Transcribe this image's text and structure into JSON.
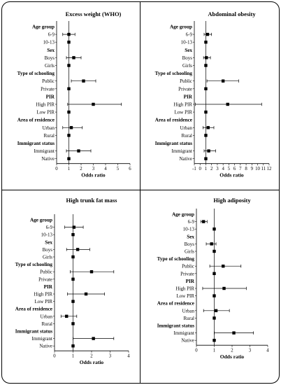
{
  "chart_data": [
    {
      "type": "forest",
      "title": "Excess weight (WHO)",
      "xlabel": "Odds ratio",
      "xlim": [
        0,
        6
      ],
      "xticks": [
        0,
        1,
        2,
        3,
        4,
        5,
        6
      ],
      "reference_line": 1,
      "rows": [
        {
          "label": "Age group",
          "header": true
        },
        {
          "label": "6-9",
          "or": 1.0,
          "lo": 0.5,
          "hi": 1.5
        },
        {
          "label": "10-13",
          "or": 1.0,
          "lo": 1.0,
          "hi": 1.0
        },
        {
          "label": "Sex",
          "header": true
        },
        {
          "label": "Boys",
          "or": 1.4,
          "lo": 0.8,
          "hi": 2.0
        },
        {
          "label": "Girls",
          "or": 1.0,
          "lo": 1.0,
          "hi": 1.0
        },
        {
          "label": "Type of schooling",
          "header": true
        },
        {
          "label": "Public",
          "or": 2.2,
          "lo": 1.2,
          "hi": 3.2
        },
        {
          "label": "Private",
          "or": 1.0,
          "lo": 1.0,
          "hi": 1.0
        },
        {
          "label": "PIR",
          "header": true
        },
        {
          "label": "High PIR",
          "or": 3.0,
          "lo": 0.9,
          "hi": 5.3
        },
        {
          "label": "Low PIR",
          "or": 1.0,
          "lo": 1.0,
          "hi": 1.0
        },
        {
          "label": "Area of residence",
          "header": true
        },
        {
          "label": "Urban",
          "or": 1.2,
          "lo": 0.5,
          "hi": 2.1
        },
        {
          "label": "Rural",
          "or": 1.0,
          "lo": 1.0,
          "hi": 1.0
        },
        {
          "label": "Immigrant status",
          "header": true
        },
        {
          "label": "Immigrant",
          "or": 1.8,
          "lo": 0.8,
          "hi": 2.8
        },
        {
          "label": "Native",
          "or": 1.0,
          "lo": 1.0,
          "hi": 1.0
        }
      ]
    },
    {
      "type": "forest",
      "title": "Abdominal obesity",
      "xlabel": "Odds ratio",
      "xlim": [
        -1,
        12
      ],
      "xticks": [
        -1,
        0,
        1,
        2,
        3,
        4,
        5,
        6,
        7,
        8,
        9,
        10,
        11,
        12
      ],
      "reference_line": 1,
      "rows": [
        {
          "label": "Age group",
          "header": true
        },
        {
          "label": "6-9",
          "or": 1.3,
          "lo": 0.7,
          "hi": 2.0
        },
        {
          "label": "10-13",
          "or": 1.0,
          "lo": 1.0,
          "hi": 1.0
        },
        {
          "label": "Sex",
          "header": true
        },
        {
          "label": "Boys",
          "or": 1.1,
          "lo": 0.6,
          "hi": 1.8
        },
        {
          "label": "Girls",
          "or": 1.0,
          "lo": 1.0,
          "hi": 1.0
        },
        {
          "label": "Type of schooling",
          "header": true
        },
        {
          "label": "Public",
          "or": 4.0,
          "lo": 1.2,
          "hi": 6.7
        },
        {
          "label": "Private",
          "or": 1.0,
          "lo": 1.0,
          "hi": 1.0
        },
        {
          "label": "PIR",
          "header": true
        },
        {
          "label": "High PIR",
          "or": 4.8,
          "lo": -0.8,
          "hi": 10.7
        },
        {
          "label": "Low PIR",
          "or": 1.0,
          "lo": 1.0,
          "hi": 1.0
        },
        {
          "label": "Area of residence",
          "header": true
        },
        {
          "label": "Urban",
          "or": 1.4,
          "lo": 0.5,
          "hi": 2.4
        },
        {
          "label": "Rural",
          "or": 1.0,
          "lo": 1.0,
          "hi": 1.0
        },
        {
          "label": "Immigrant status",
          "header": true
        },
        {
          "label": "Immigrant",
          "or": 1.5,
          "lo": 0.7,
          "hi": 2.7
        },
        {
          "label": "Native",
          "or": 1.0,
          "lo": 1.0,
          "hi": 1.0
        }
      ]
    },
    {
      "type": "forest",
      "title": "High trunk fat mass",
      "xlabel": "Odds ratio",
      "xlim": [
        0,
        4
      ],
      "xticks": [
        0,
        1,
        2,
        3,
        4
      ],
      "reference_line": 1,
      "rows": [
        {
          "label": "Age group",
          "header": true
        },
        {
          "label": "6-9",
          "or": 1.05,
          "lo": 0.55,
          "hi": 1.55
        },
        {
          "label": "10-13",
          "or": 1.0,
          "lo": 1.0,
          "hi": 1.0
        },
        {
          "label": "Sex",
          "header": true
        },
        {
          "label": "Boys",
          "or": 1.25,
          "lo": 0.65,
          "hi": 1.9
        },
        {
          "label": "Girls",
          "or": 1.0,
          "lo": 1.0,
          "hi": 1.0
        },
        {
          "label": "Type of schooling",
          "header": true
        },
        {
          "label": "Public",
          "or": 2.0,
          "lo": 0.85,
          "hi": 3.2
        },
        {
          "label": "Private",
          "or": 1.0,
          "lo": 1.0,
          "hi": 1.0
        },
        {
          "label": "PIR",
          "header": true
        },
        {
          "label": "High PIR",
          "or": 1.7,
          "lo": 0.7,
          "hi": 2.7
        },
        {
          "label": "Low PIR",
          "or": 1.0,
          "lo": 1.0,
          "hi": 1.0
        },
        {
          "label": "Area of residence",
          "header": true
        },
        {
          "label": "Urban",
          "or": 0.65,
          "lo": 0.35,
          "hi": 1.2
        },
        {
          "label": "Rural",
          "or": 1.0,
          "lo": 1.0,
          "hi": 1.0
        },
        {
          "label": "Immigrant status",
          "header": true
        },
        {
          "label": "Immigrant",
          "or": 2.1,
          "lo": 1.0,
          "hi": 3.2
        },
        {
          "label": "Native",
          "or": 1.0,
          "lo": 1.0,
          "hi": 1.0
        }
      ]
    },
    {
      "type": "forest",
      "title": "High adiposity",
      "xlabel": "Odds ratio",
      "xlim": [
        0,
        4
      ],
      "xticks": [
        0,
        1,
        2,
        3,
        4
      ],
      "reference_line": 1,
      "rows": [
        {
          "label": "Age group",
          "header": true
        },
        {
          "label": "6-9",
          "or": 0.4,
          "lo": 0.25,
          "hi": 0.6
        },
        {
          "label": "10-13",
          "or": 1.0,
          "lo": 1.0,
          "hi": 1.0
        },
        {
          "label": "Sex",
          "header": true
        },
        {
          "label": "Boys",
          "or": 0.85,
          "lo": 0.55,
          "hi": 1.1
        },
        {
          "label": "Girls",
          "or": 1.0,
          "lo": 1.0,
          "hi": 1.0
        },
        {
          "label": "Type of schooling",
          "header": true
        },
        {
          "label": "Public",
          "or": 1.5,
          "lo": 0.75,
          "hi": 2.5
        },
        {
          "label": "Private",
          "or": 1.0,
          "lo": 1.0,
          "hi": 1.0
        },
        {
          "label": "PIR",
          "header": true
        },
        {
          "label": "High PIR",
          "or": 1.55,
          "lo": 0.35,
          "hi": 2.8
        },
        {
          "label": "Low PIR",
          "or": 1.0,
          "lo": 1.0,
          "hi": 1.0
        },
        {
          "label": "Area of residence",
          "header": true
        },
        {
          "label": "Urban",
          "or": 1.1,
          "lo": 0.4,
          "hi": 1.85
        },
        {
          "label": "Rural",
          "or": 1.0,
          "lo": 1.0,
          "hi": 1.0
        },
        {
          "label": "Immigrant status",
          "header": true
        },
        {
          "label": "Immigrant",
          "or": 2.1,
          "lo": 1.0,
          "hi": 3.2
        },
        {
          "label": "Native",
          "or": 1.0,
          "lo": 1.0,
          "hi": 1.0
        }
      ]
    }
  ]
}
